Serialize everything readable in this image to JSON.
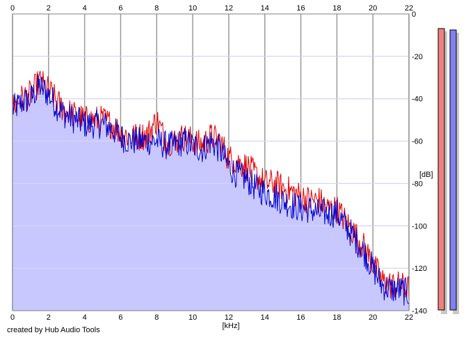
{
  "chart_data": {
    "type": "line",
    "xlabel": "[kHz]",
    "ylabel": "[dB]",
    "xlim": [
      0,
      22
    ],
    "ylim": [
      -140,
      0
    ],
    "x_ticks": [
      "0",
      "2",
      "4",
      "6",
      "8",
      "10",
      "12",
      "14",
      "16",
      "18",
      "20",
      "22"
    ],
    "y_ticks": [
      "0",
      "-20",
      "-40",
      "-60",
      "-80",
      "-100",
      "-120",
      "-140"
    ],
    "grid": true,
    "fill_color": "#c8c8ff",
    "series": [
      {
        "color": "#e00000",
        "x": [
          0,
          0.5,
          1,
          1.5,
          2,
          2.5,
          3,
          3.5,
          4,
          4.5,
          5,
          5.5,
          6,
          6.5,
          7,
          7.5,
          8,
          8.5,
          9,
          9.5,
          10,
          10.5,
          11,
          11.5,
          12,
          12.5,
          13,
          13.5,
          14,
          14.5,
          15,
          15.5,
          16,
          16.5,
          17,
          17.5,
          18,
          18.5,
          19,
          19.5,
          20,
          20.5,
          21,
          21.5,
          22
        ],
        "y": [
          -44,
          -40,
          -38,
          -32,
          -36,
          -42,
          -46,
          -48,
          -50,
          -50,
          -50,
          -52,
          -56,
          -58,
          -58,
          -57,
          -50,
          -60,
          -60,
          -58,
          -60,
          -62,
          -58,
          -60,
          -68,
          -70,
          -72,
          -76,
          -80,
          -80,
          -82,
          -84,
          -86,
          -88,
          -88,
          -92,
          -92,
          -98,
          -104,
          -110,
          -118,
          -126,
          -128,
          -128,
          -130
        ]
      },
      {
        "color": "#0000d0",
        "x": [
          0,
          0.5,
          1,
          1.5,
          2,
          2.5,
          3,
          3.5,
          4,
          4.5,
          5,
          5.5,
          6,
          6.5,
          7,
          7.5,
          8,
          8.5,
          9,
          9.5,
          10,
          10.5,
          11,
          11.5,
          12,
          12.5,
          13,
          13.5,
          14,
          14.5,
          15,
          15.5,
          16,
          16.5,
          17,
          17.5,
          18,
          18.5,
          19,
          19.5,
          20,
          20.5,
          21,
          21.5,
          22
        ],
        "y": [
          -45,
          -42,
          -40,
          -34,
          -38,
          -44,
          -48,
          -50,
          -52,
          -52,
          -52,
          -54,
          -58,
          -60,
          -60,
          -60,
          -60,
          -62,
          -62,
          -60,
          -62,
          -64,
          -60,
          -64,
          -72,
          -76,
          -78,
          -82,
          -84,
          -86,
          -88,
          -90,
          -92,
          -92,
          -94,
          -94,
          -94,
          -100,
          -106,
          -112,
          -120,
          -128,
          -130,
          -130,
          -132
        ]
      }
    ]
  },
  "footer": {
    "credit": "created by Hub Audio Tools"
  },
  "meters": [
    {
      "color": "#f08080"
    },
    {
      "color": "#8080f0"
    }
  ]
}
